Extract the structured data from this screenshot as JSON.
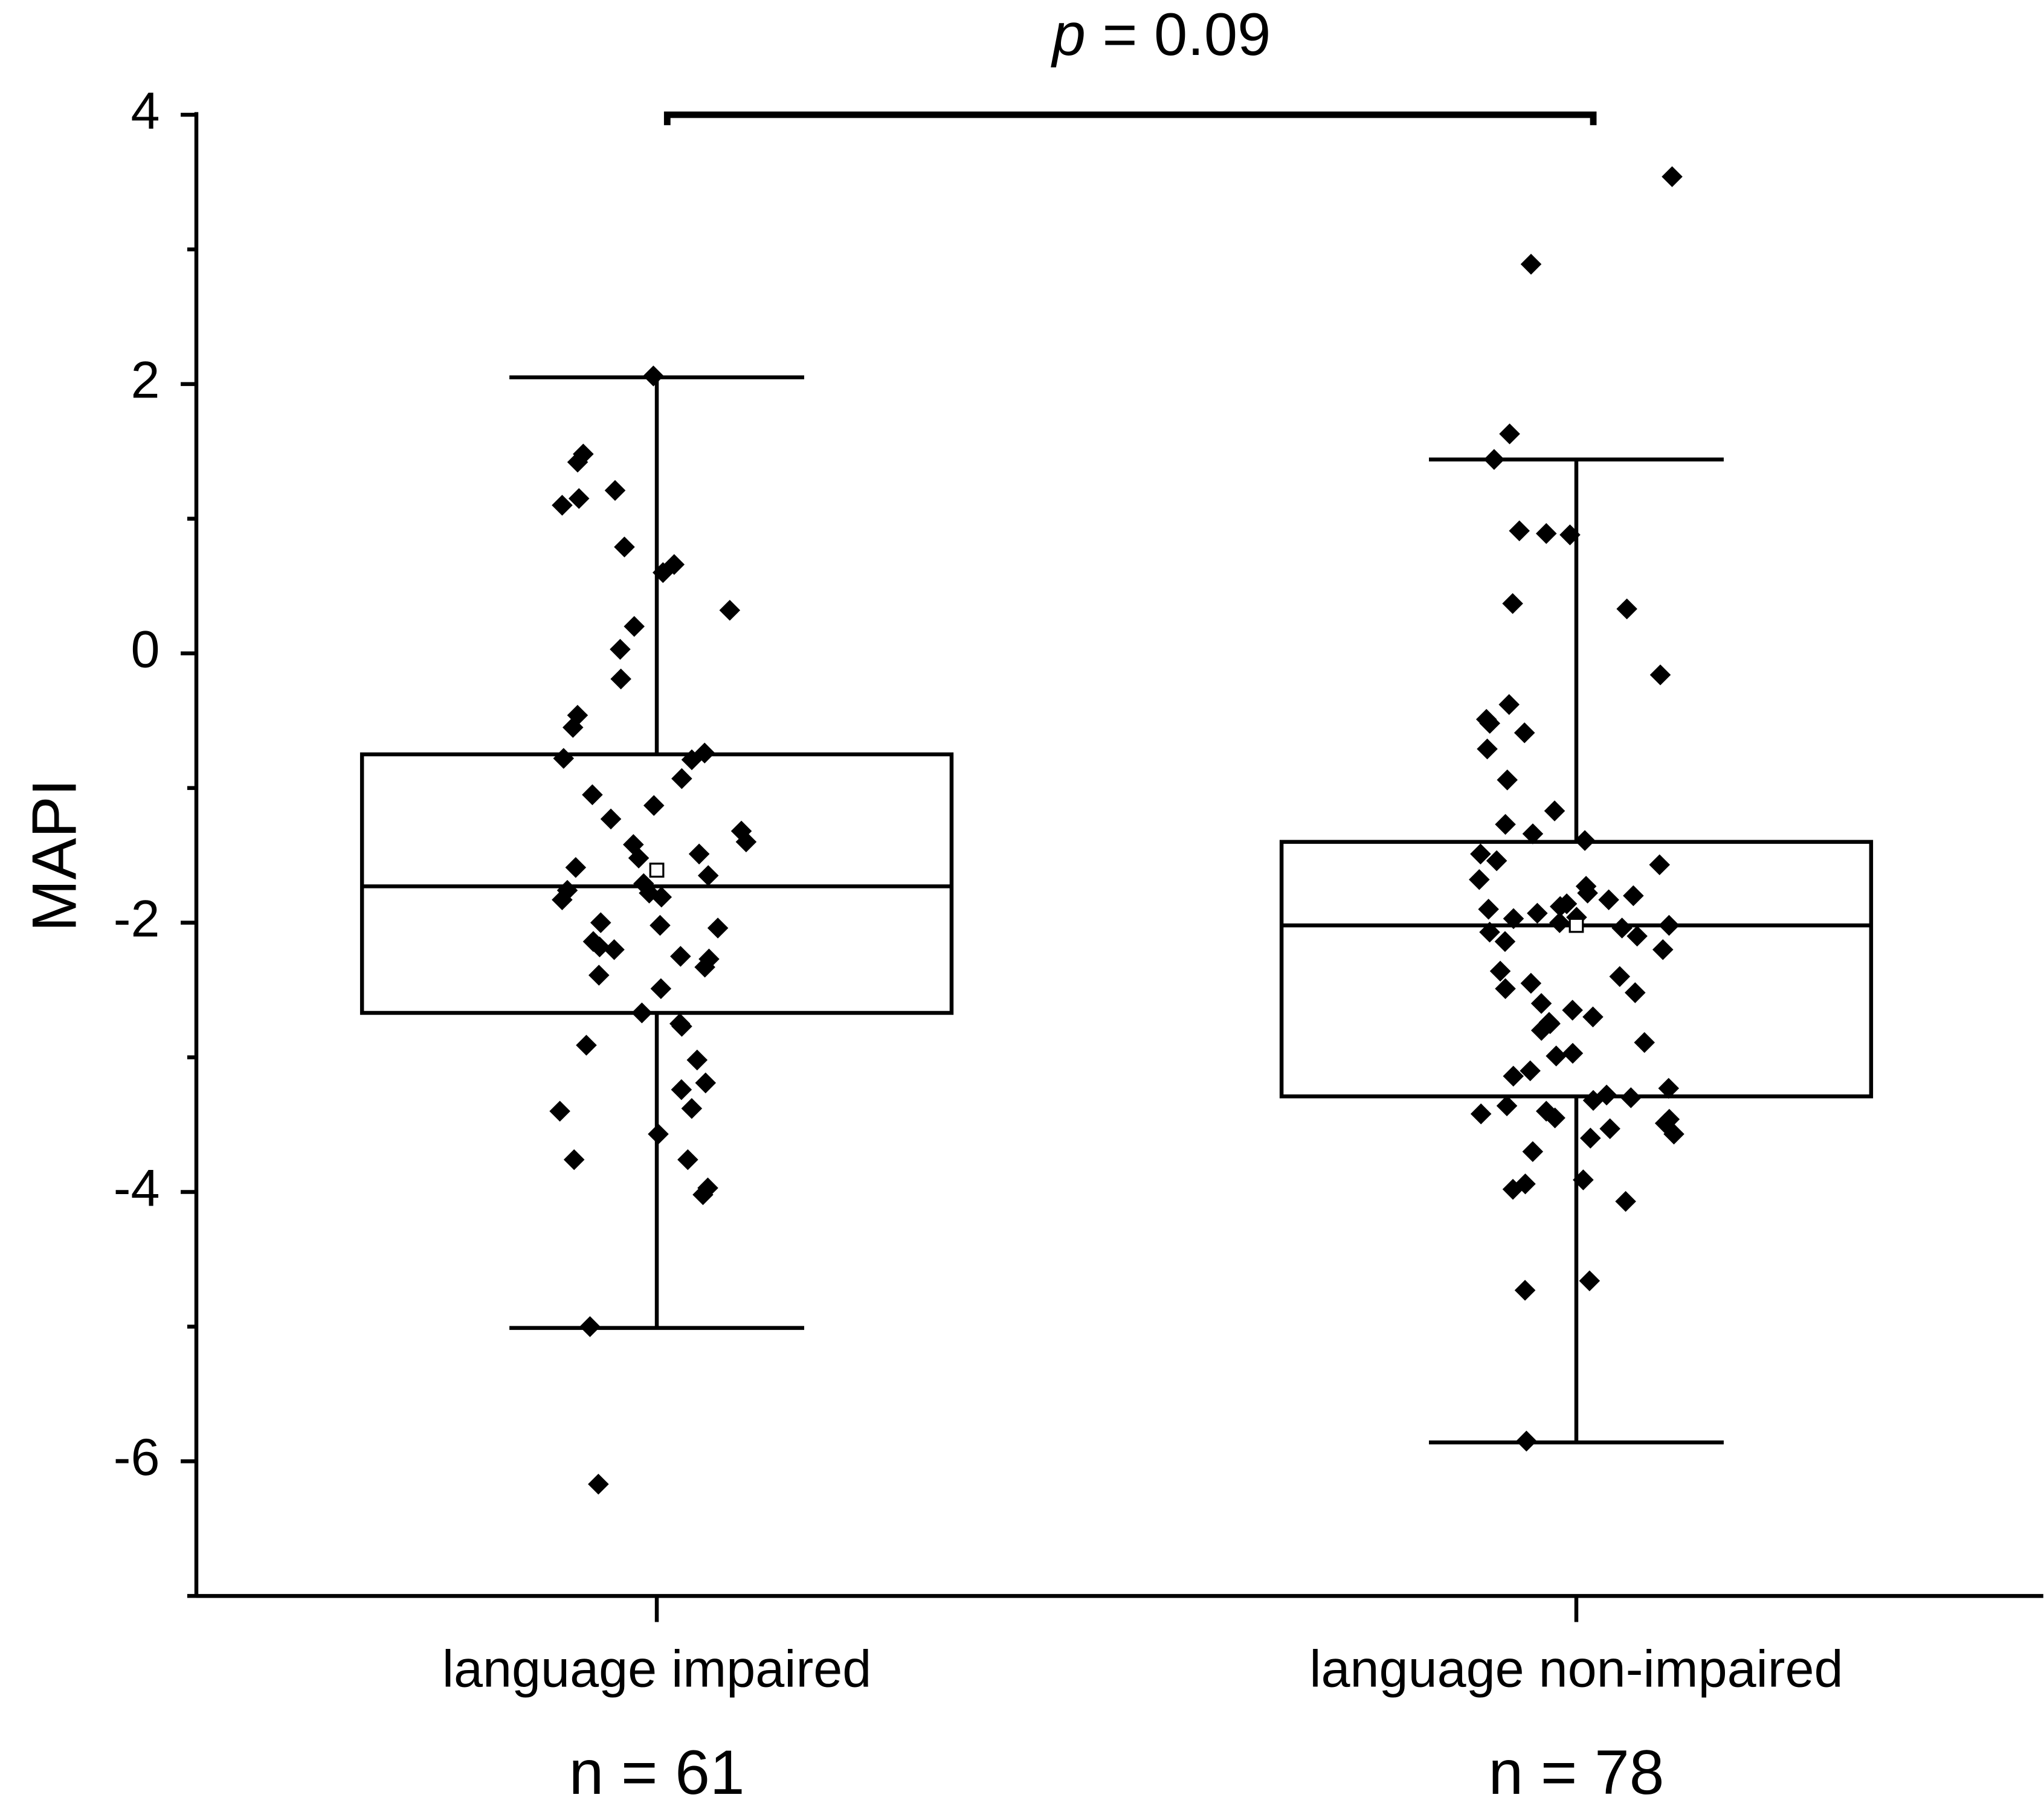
{
  "chart_data": {
    "type": "box",
    "ylabel": "MAPI",
    "annotation": {
      "symbol": "p",
      "text": "= 0.09"
    },
    "categories": [
      "language impaired",
      "language non-impaired"
    ],
    "counts": [
      "n = 61",
      "n = 78"
    ],
    "ylim": [
      -7,
      4
    ],
    "yticks": [
      4,
      2,
      0,
      -2,
      -4,
      -6
    ],
    "yminorticks": [
      3,
      1,
      -1,
      -3,
      -5,
      -7
    ],
    "color": "#000000",
    "boxes": [
      {
        "whisker_high": 2.05,
        "q3": -0.75,
        "median": -1.73,
        "q1": -2.67,
        "whisker_low": -5.01,
        "mean": -1.61,
        "points": [
          2.06,
          1.48,
          1.42,
          1.21,
          1.15,
          1.1,
          0.79,
          0.66,
          0.6,
          0.32,
          0.2,
          0.03,
          -0.19,
          -0.46,
          -0.55,
          -0.74,
          -0.79,
          -0.93,
          -1.05,
          -1.13,
          -1.23,
          -1.32,
          -1.4,
          -1.42,
          -1.49,
          -1.52,
          -1.59,
          -1.65,
          -1.71,
          -1.76,
          -1.81,
          -1.83,
          -2.0,
          -2.02,
          -2.04,
          -2.14,
          -2.18,
          -2.25,
          -2.27,
          -2.33,
          -2.39,
          -2.49,
          -2.67,
          -2.75,
          -2.77,
          -2.91,
          -3.02,
          -3.19,
          -3.24,
          -3.38,
          -3.4,
          -3.57,
          -3.76,
          -3.76,
          -3.97,
          -4.02,
          -5.0,
          -6.17,
          -1.78,
          -2.2,
          -0.78
        ]
      },
      {
        "whisker_high": 1.44,
        "q3": -1.4,
        "median": -2.02,
        "q1": -3.29,
        "whisker_low": -5.86,
        "mean": -2.02,
        "points": [
          3.54,
          2.89,
          1.63,
          1.44,
          0.89,
          0.88,
          0.91,
          0.37,
          0.33,
          -0.16,
          -0.38,
          -0.49,
          -0.52,
          -0.59,
          -0.71,
          -0.94,
          -1.17,
          -1.27,
          -1.34,
          -1.39,
          -1.49,
          -1.54,
          -1.57,
          -1.68,
          -1.73,
          -1.78,
          -1.83,
          -1.86,
          -1.9,
          -1.93,
          -1.96,
          -1.97,
          -2.0,
          -2.04,
          -2.07,
          -2.14,
          -2.36,
          -2.45,
          -2.49,
          -2.52,
          -2.65,
          -2.7,
          -2.74,
          -2.75,
          -2.89,
          -2.97,
          -2.99,
          -3.14,
          -3.23,
          -3.28,
          -3.3,
          -3.36,
          -3.4,
          -3.42,
          -3.45,
          -3.49,
          -3.53,
          -3.57,
          -3.7,
          -3.91,
          -3.94,
          -3.98,
          -4.07,
          -4.66,
          -4.73,
          -5.85,
          -1.8,
          -1.88,
          -2.02,
          -2.1,
          -2.2,
          -2.4,
          -2.6,
          -2.8,
          -3.1,
          -3.32,
          -3.46,
          -3.6
        ]
      }
    ]
  }
}
